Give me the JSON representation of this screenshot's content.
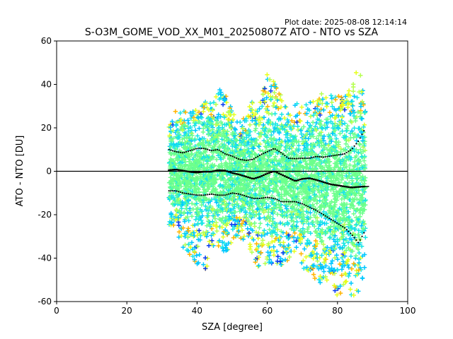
{
  "chart_data": {
    "type": "scatter",
    "title": "S-O3M_GOME_VOD_XX_M01_20250807Z ATO - NTO vs SZA",
    "plot_date": "Plot date: 2025-08-08 12:14:14",
    "xlabel": "SZA [degree]",
    "ylabel": "ATO - NTO [DU]",
    "xlim": [
      0,
      100
    ],
    "ylim": [
      -60,
      60
    ],
    "xticks": [
      0,
      20,
      40,
      60,
      80,
      100
    ],
    "yticks": [
      -60,
      -40,
      -20,
      0,
      20,
      40,
      60
    ],
    "zero_line": 0,
    "marker": "+",
    "sza_range": [
      32,
      88
    ],
    "colors": {
      "blue": "#0a3cf0",
      "cyan": "#00c8ff",
      "aqua": "#19e6e6",
      "green": "#6cff8c",
      "lime": "#b6ff50",
      "yellow": "#e6ff1e",
      "orange": "#ffb400"
    },
    "cloud_bounds": [
      {
        "sza": 32,
        "low": -25,
        "high": 22
      },
      {
        "sza": 34,
        "low": -28,
        "high": 28
      },
      {
        "sza": 36,
        "low": -35,
        "high": 30
      },
      {
        "sza": 38,
        "low": -40,
        "high": 27
      },
      {
        "sza": 40,
        "low": -45,
        "high": 30
      },
      {
        "sza": 42,
        "low": -47,
        "high": 32
      },
      {
        "sza": 44,
        "low": -40,
        "high": 34
      },
      {
        "sza": 46,
        "low": -35,
        "high": 38
      },
      {
        "sza": 48,
        "low": -38,
        "high": 38
      },
      {
        "sza": 50,
        "low": -33,
        "high": 28
      },
      {
        "sza": 52,
        "low": -30,
        "high": 22
      },
      {
        "sza": 54,
        "low": -35,
        "high": 28
      },
      {
        "sza": 56,
        "low": -42,
        "high": 33
      },
      {
        "sza": 58,
        "low": -45,
        "high": 34
      },
      {
        "sza": 60,
        "low": -42,
        "high": 45
      },
      {
        "sza": 62,
        "low": -47,
        "high": 43
      },
      {
        "sza": 64,
        "low": -45,
        "high": 36
      },
      {
        "sza": 66,
        "low": -42,
        "high": 30
      },
      {
        "sza": 68,
        "low": -40,
        "high": 32
      },
      {
        "sza": 70,
        "low": -44,
        "high": 30
      },
      {
        "sza": 72,
        "low": -48,
        "high": 32
      },
      {
        "sza": 74,
        "low": -52,
        "high": 35
      },
      {
        "sza": 76,
        "low": -55,
        "high": 37
      },
      {
        "sza": 78,
        "low": -56,
        "high": 36
      },
      {
        "sza": 80,
        "low": -57,
        "high": 35
      },
      {
        "sza": 82,
        "low": -57,
        "high": 35
      },
      {
        "sza": 84,
        "low": -58,
        "high": 40
      },
      {
        "sza": 86,
        "low": -58,
        "high": 50
      },
      {
        "sza": 88,
        "low": -45,
        "high": 30
      }
    ],
    "mean_line": [
      [
        32,
        0.5
      ],
      [
        34,
        0.8
      ],
      [
        36,
        0.3
      ],
      [
        38,
        -0.3
      ],
      [
        40,
        -0.6
      ],
      [
        42,
        -0.2
      ],
      [
        44,
        -0.2
      ],
      [
        46,
        0.5
      ],
      [
        48,
        0.3
      ],
      [
        50,
        -0.8
      ],
      [
        52,
        -1.5
      ],
      [
        54,
        -2.5
      ],
      [
        56,
        -3.5
      ],
      [
        58,
        -2.5
      ],
      [
        60,
        -1.0
      ],
      [
        62,
        0.0
      ],
      [
        64,
        -1.5
      ],
      [
        66,
        -3.0
      ],
      [
        68,
        -4.5
      ],
      [
        70,
        -3.5
      ],
      [
        72,
        -3.2
      ],
      [
        74,
        -4.0
      ],
      [
        76,
        -5.0
      ],
      [
        78,
        -6.0
      ],
      [
        80,
        -6.5
      ],
      [
        82,
        -7.0
      ],
      [
        84,
        -7.5
      ],
      [
        86,
        -7.2
      ],
      [
        88,
        -7.0
      ]
    ],
    "upper_sigma": [
      [
        32,
        10
      ],
      [
        34,
        9
      ],
      [
        36,
        8.5
      ],
      [
        38,
        9.5
      ],
      [
        40,
        10.5
      ],
      [
        42,
        10.5
      ],
      [
        44,
        9.5
      ],
      [
        46,
        10
      ],
      [
        48,
        8
      ],
      [
        50,
        7
      ],
      [
        52,
        5.5
      ],
      [
        54,
        5
      ],
      [
        56,
        5.5
      ],
      [
        58,
        7.5
      ],
      [
        60,
        9
      ],
      [
        62,
        10.5
      ],
      [
        64,
        8.5
      ],
      [
        66,
        6
      ],
      [
        68,
        5.8
      ],
      [
        70,
        6
      ],
      [
        72,
        6
      ],
      [
        74,
        6.8
      ],
      [
        76,
        6.5
      ],
      [
        78,
        7
      ],
      [
        80,
        7.5
      ],
      [
        82,
        8
      ],
      [
        84,
        10
      ],
      [
        86,
        14
      ],
      [
        88,
        20
      ]
    ],
    "lower_sigma": [
      [
        32,
        -9
      ],
      [
        34,
        -9
      ],
      [
        36,
        -10
      ],
      [
        38,
        -10.5
      ],
      [
        40,
        -11
      ],
      [
        42,
        -11
      ],
      [
        44,
        -10.5
      ],
      [
        46,
        -11
      ],
      [
        48,
        -11
      ],
      [
        50,
        -10
      ],
      [
        52,
        -10.5
      ],
      [
        54,
        -11.5
      ],
      [
        56,
        -12.5
      ],
      [
        58,
        -12.5
      ],
      [
        60,
        -12
      ],
      [
        62,
        -12.5
      ],
      [
        64,
        -14
      ],
      [
        66,
        -14
      ],
      [
        68,
        -14
      ],
      [
        70,
        -15
      ],
      [
        72,
        -16.5
      ],
      [
        74,
        -18
      ],
      [
        76,
        -20
      ],
      [
        78,
        -22
      ],
      [
        80,
        -24
      ],
      [
        82,
        -26
      ],
      [
        84,
        -29
      ],
      [
        86,
        -33
      ],
      [
        88,
        -27
      ]
    ]
  }
}
